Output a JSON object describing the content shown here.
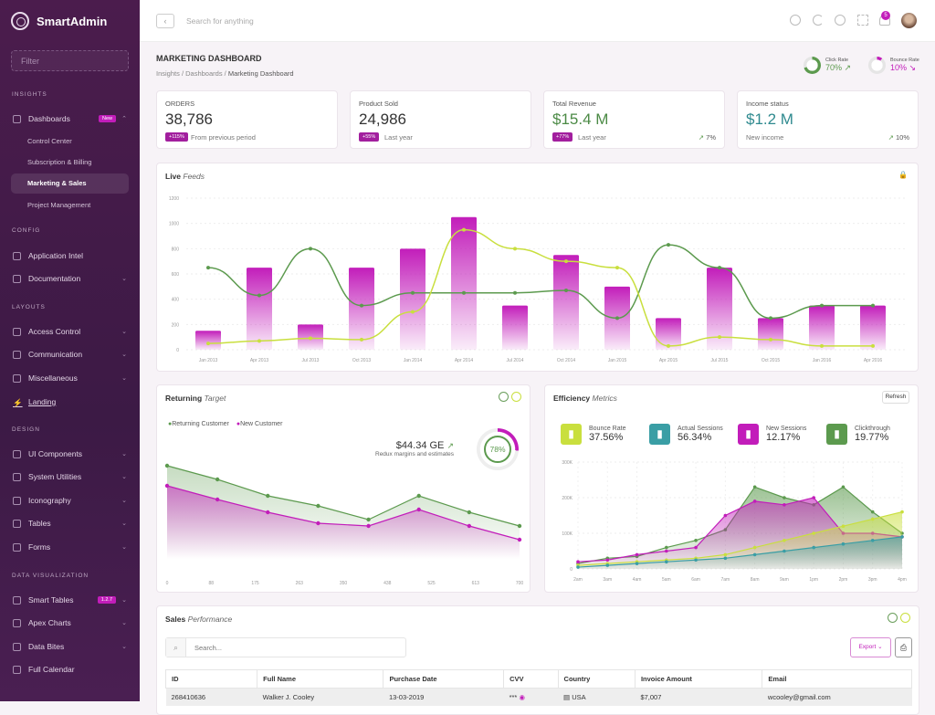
{
  "app": {
    "name": "SmartAdmin"
  },
  "sidebar": {
    "filter_placeholder": "Filter",
    "sections": {
      "insights": "INSIGHTS",
      "config": "CONFIG",
      "layouts": "LAYOUTS",
      "design": "DESIGN",
      "dataviz": "DATA VISUALIZATION"
    },
    "dashboards": {
      "label": "Dashboards",
      "badge": "New",
      "children": [
        "Control Center",
        "Subscription & Billing",
        "Marketing & Sales",
        "Project Management"
      ]
    },
    "config_items": [
      "Application Intel",
      "Documentation"
    ],
    "layout_items": [
      "Access Control",
      "Communication",
      "Miscellaneous",
      "Landing"
    ],
    "design_items": [
      "UI Components",
      "System Utilities",
      "Iconography",
      "Tables",
      "Forms"
    ],
    "dataviz_items": [
      "Smart Tables",
      "Apex Charts",
      "Data Bites",
      "Full Calendar"
    ],
    "smart_tables_badge": "1.2.7"
  },
  "header": {
    "search_placeholder": "Search for anything",
    "notifications": "5"
  },
  "page": {
    "title": "MARKETING DASHBOARD",
    "breadcrumb": [
      "Insights",
      "Dashboards",
      "Marketing Dashboard"
    ],
    "click_rate": {
      "label": "Click Rate",
      "value": "70%",
      "percent": 70
    },
    "bounce_rate": {
      "label": "Bounce Rate",
      "value": "10%",
      "percent": 10
    }
  },
  "kpis": [
    {
      "label": "ORDERS",
      "value": "38,786",
      "badge": "+115%",
      "note": "From previous period"
    },
    {
      "label": "Product Sold",
      "value": "24,986",
      "badge": "+55%",
      "note": "Last year"
    },
    {
      "label": "Total Revenue",
      "value": "$15.4 M",
      "badge": "+77%",
      "note": "Last year",
      "trend": "7%"
    },
    {
      "label": "Income status",
      "value": "$1.2 M",
      "note": "New income",
      "trend": "10%"
    }
  ],
  "live_feeds": {
    "title": "Live",
    "title_em": "Feeds"
  },
  "returning": {
    "title": "Returning",
    "title_em": "Target",
    "amount": "$44.34 GE",
    "amount_note": "Redux margins and estimates",
    "gauge": "78%",
    "gauge_percent": 78
  },
  "efficiency": {
    "title": "Efficiency",
    "title_em": "Metrics",
    "refresh": "Refresh",
    "metrics": [
      {
        "label": "Bounce Rate",
        "value": "37.56%",
        "color": "#c9df3e"
      },
      {
        "label": "Actual Sessions",
        "value": "56.34%",
        "color": "#3a9ea5"
      },
      {
        "label": "New Sessions",
        "value": "12.17%",
        "color": "#c21dba"
      },
      {
        "label": "Clickthrough",
        "value": "19.77%",
        "color": "#5c9a4e"
      }
    ]
  },
  "sales": {
    "title": "Sales",
    "title_em": "Performance",
    "search_placeholder": "Search...",
    "export": "Export",
    "columns": [
      "ID",
      "Full Name",
      "Purchase Date",
      "CVV",
      "Country",
      "Invoice Amount",
      "Email"
    ],
    "rows": [
      [
        "268410636",
        "Walker J. Cooley",
        "13-03-2019",
        "***",
        "USA",
        "$7,007",
        "wcooley@gmail.com"
      ]
    ]
  },
  "chart_data": [
    {
      "type": "bar",
      "ylim": [
        0,
        1200
      ],
      "yticks": [
        0,
        200,
        400,
        600,
        800,
        1000,
        1200
      ],
      "categories": [
        "Jan 2013",
        "Apr 2013",
        "Jul 2013",
        "Oct 2013",
        "Jan 2014",
        "Apr 2014",
        "Jul 2014",
        "Oct 2014",
        "Jan 2015",
        "Apr 2015",
        "Jul 2015",
        "Oct 2015",
        "Jan 2016",
        "Apr 2016"
      ],
      "series": [
        {
          "kind": "bar",
          "color": "#c21dba",
          "values": [
            150,
            650,
            200,
            650,
            800,
            1050,
            350,
            750,
            500,
            250,
            650,
            250,
            350,
            350
          ]
        },
        {
          "kind": "line",
          "color": "#5c9a4e",
          "values": [
            650,
            430,
            800,
            350,
            450,
            450,
            450,
            470,
            250,
            830,
            650,
            250,
            350,
            350
          ]
        },
        {
          "kind": "line",
          "color": "#c9df3e",
          "values": [
            50,
            70,
            90,
            80,
            300,
            950,
            800,
            700,
            650,
            30,
            100,
            80,
            30,
            30
          ]
        }
      ]
    },
    {
      "type": "area",
      "xticks": [
        "0",
        "88",
        "175",
        "263",
        "350",
        "438",
        "525",
        "613",
        "700"
      ],
      "legend": "top-left",
      "series": [
        {
          "name": "Returning Customer",
          "color": "#5c9a4e",
          "values": [
            102,
            87,
            69,
            58,
            43,
            69,
            51,
            36
          ]
        },
        {
          "name": "New Customer",
          "color": "#c21dba",
          "values": [
            80,
            65,
            51,
            39,
            36,
            54,
            36,
            21
          ]
        }
      ]
    },
    {
      "type": "area",
      "ylim": [
        0,
        300
      ],
      "yticks": [
        "0",
        "100K",
        "200K",
        "300K"
      ],
      "grid": true,
      "categories": [
        "2am",
        "3am",
        "4am",
        "5am",
        "6am",
        "7am",
        "8am",
        "9am",
        "1pm",
        "2pm",
        "3pm",
        "4pm"
      ],
      "series": [
        {
          "color": "#5c9a4e",
          "values": [
            15,
            30,
            35,
            60,
            80,
            110,
            230,
            200,
            180,
            230,
            160,
            100
          ]
        },
        {
          "color": "#c21dba",
          "values": [
            20,
            25,
            40,
            50,
            60,
            150,
            190,
            180,
            200,
            100,
            100,
            90
          ]
        },
        {
          "color": "#c9df3e",
          "values": [
            10,
            15,
            20,
            25,
            30,
            40,
            60,
            80,
            100,
            120,
            140,
            160
          ]
        },
        {
          "color": "#3a9ea5",
          "values": [
            5,
            10,
            15,
            20,
            25,
            30,
            40,
            50,
            60,
            70,
            80,
            90
          ]
        }
      ]
    }
  ]
}
